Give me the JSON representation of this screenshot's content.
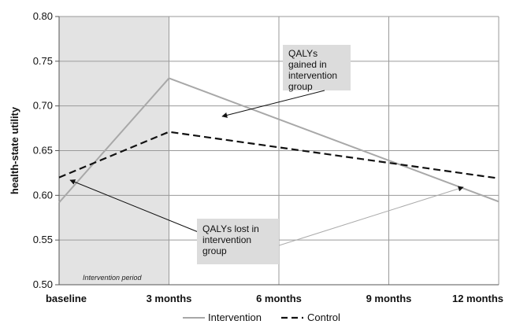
{
  "chart_data": {
    "type": "line",
    "categories": [
      "baseline",
      "3 months",
      "6 months",
      "9 months",
      "12 months"
    ],
    "ylabel": "health-state utility",
    "ylim": [
      0.5,
      0.8
    ],
    "yticks": [
      "0.50",
      "0.55",
      "0.60",
      "0.65",
      "0.70",
      "0.75",
      "0.80"
    ],
    "grid": true,
    "legend_position": "bottom",
    "series": [
      {
        "name": "Intervention",
        "style": "solid",
        "color": "#a8a8a8",
        "x": [
          0,
          1,
          4
        ],
        "values": [
          0.592,
          0.731,
          0.593
        ]
      },
      {
        "name": "Control",
        "style": "dashed",
        "color": "#111111",
        "x": [
          0,
          1,
          4
        ],
        "values": [
          0.62,
          0.671,
          0.619
        ]
      }
    ],
    "shaded_region": {
      "x_from": 0,
      "x_to": 1,
      "label": "Intervention period",
      "color": "#e3e3e3"
    },
    "annotations": [
      {
        "lines": [
          "QALYs",
          "gained in",
          "intervention",
          "group"
        ]
      },
      {
        "lines": [
          "QALYs lost in",
          "intervention",
          "group"
        ]
      }
    ]
  }
}
